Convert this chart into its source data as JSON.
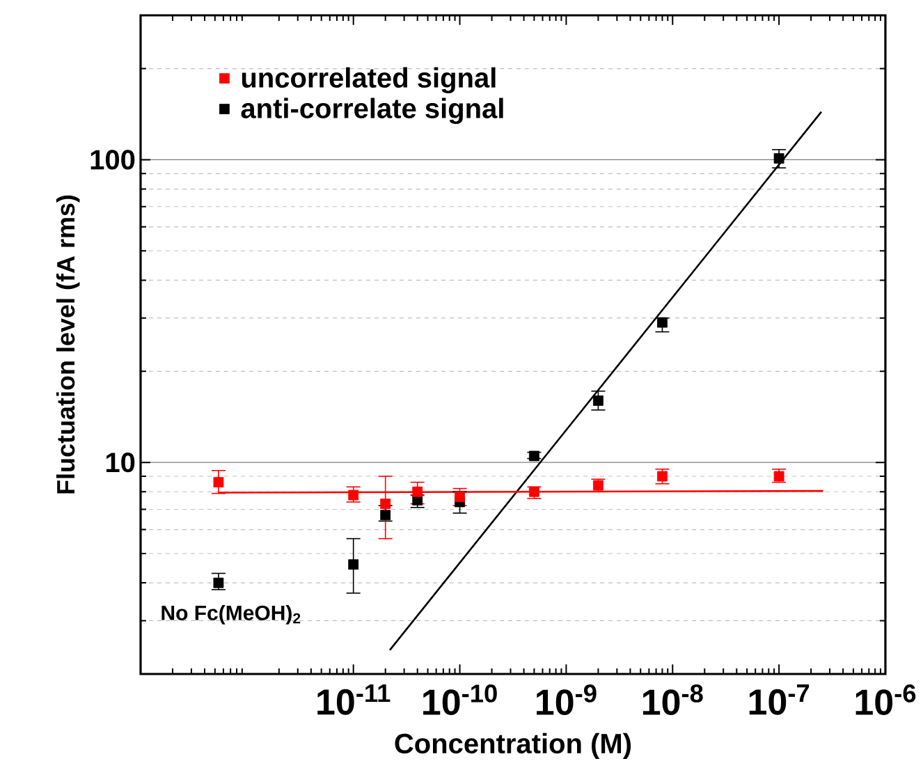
{
  "chart_data": {
    "type": "scatter",
    "xlabel": "Concentration (M)",
    "ylabel": "Fluctuation level (fA rms)",
    "log": "xy",
    "grid": "y",
    "legend": "top left",
    "marker": "square",
    "xlim": [
      1e-13,
      1e-06
    ],
    "ylim": [
      2,
      300
    ],
    "xticks": [
      {
        "value": 1e-11,
        "label": "10$^{-11}$"
      },
      {
        "value": 1e-10,
        "label": "10$^{-10}$"
      },
      {
        "value": 1e-09,
        "label": "10$^{-9}$"
      },
      {
        "value": 1e-08,
        "label": "10$^{-8}$"
      },
      {
        "value": 1e-07,
        "label": "10$^{-7}$"
      },
      {
        "value": 1e-06,
        "label": "10$^{-6}$"
      }
    ],
    "yticks": [
      10,
      100
    ],
    "annotations": [
      "No Fc(MeOH)$_{2}$"
    ],
    "series": [
      {
        "name": "uncorrelated signal",
        "color": "#ff0000",
        "x": [
          5.4e-13,
          1e-11,
          2e-11,
          4e-11,
          1e-10,
          5e-10,
          2e-09,
          8e-09,
          1e-07
        ],
        "values": [
          8.6,
          7.8,
          7.3,
          8.0,
          7.7,
          8.0,
          8.4,
          9.0,
          9.0
        ],
        "errors": [
          [
            7.9,
            9.4
          ],
          [
            7.4,
            8.3
          ],
          [
            5.6,
            9.0
          ],
          [
            7.3,
            8.6
          ],
          [
            7.2,
            8.2
          ],
          [
            7.6,
            8.3
          ],
          [
            8.0,
            8.8
          ],
          [
            8.5,
            9.5
          ],
          [
            8.6,
            9.5
          ]
        ]
      },
      {
        "name": "anti-correlate signal",
        "color": "#000000",
        "x": [
          5.4e-13,
          1e-11,
          2e-11,
          4e-11,
          1e-10,
          5e-10,
          2e-09,
          8e-09,
          1e-07
        ],
        "values": [
          4.0,
          4.6,
          6.7,
          7.5,
          7.4,
          10.5,
          16,
          29,
          101
        ],
        "errors": [
          [
            3.8,
            4.3
          ],
          [
            3.7,
            5.6
          ],
          [
            6.4,
            7.2
          ],
          [
            7.1,
            7.8
          ],
          [
            6.8,
            8.0
          ],
          [
            10.3,
            10.8
          ],
          [
            14.9,
            17.2
          ],
          [
            27,
            30
          ],
          [
            94,
            108
          ]
        ]
      },
      {
        "type": "line",
        "marker": "none",
        "color": "#ff0000",
        "x": [
          5.4e-13,
          2.6e-07
        ],
        "values": [
          7.95,
          8.05
        ]
      },
      {
        "type": "line",
        "marker": "none",
        "color": "#000000",
        "x": [
          2.2e-11,
          2.5e-07
        ],
        "values": [
          2.4,
          144
        ]
      }
    ]
  }
}
